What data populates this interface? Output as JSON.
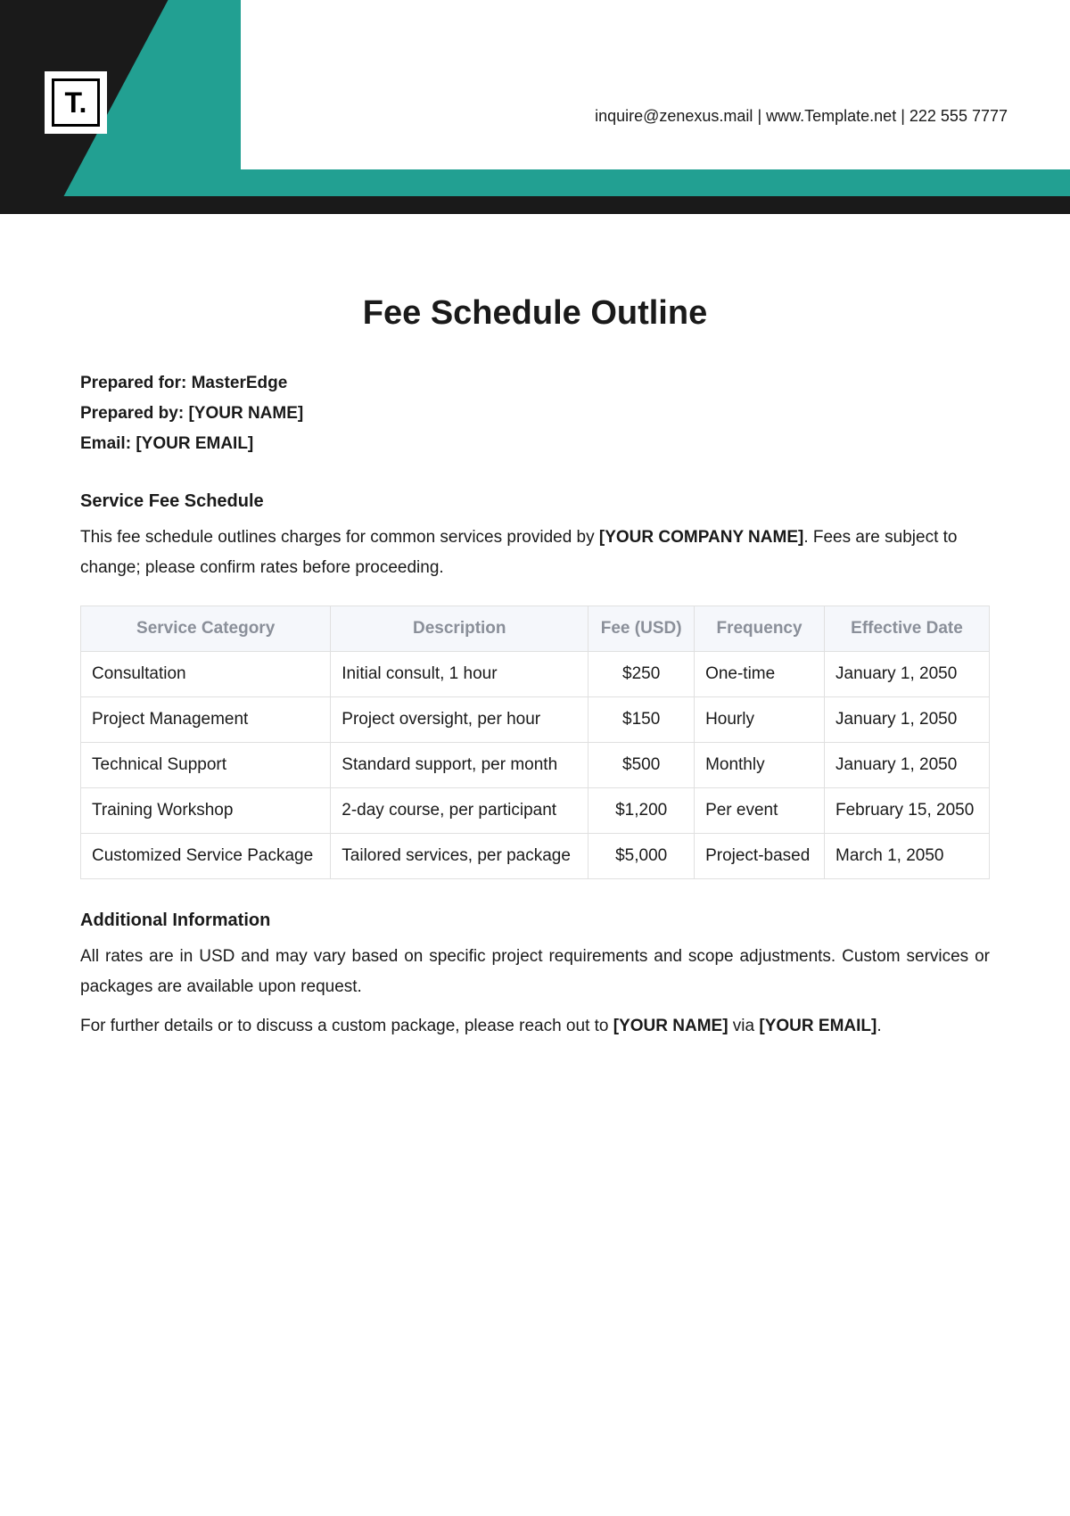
{
  "header": {
    "logo_text": "T.",
    "contact_email": "inquire@zenexus.mail",
    "contact_site": "www.Template.net",
    "contact_phone": "222 555 7777",
    "contact_sep": "  |  ",
    "colors": {
      "header_bg": "#1a1a1a",
      "accent": "#22a092",
      "page_bg": "#ffffff"
    }
  },
  "document": {
    "title": "Fee Schedule Outline",
    "prepared_for_label": "Prepared for: ",
    "prepared_for_value": "MasterEdge",
    "prepared_by_label": "Prepared by: ",
    "prepared_by_value": "[YOUR NAME]",
    "email_label": "Email: ",
    "email_value": "[YOUR EMAIL]"
  },
  "schedule": {
    "heading": "Service Fee Schedule",
    "intro_prefix": "This fee schedule outlines charges for common services provided by ",
    "intro_company": "[YOUR COMPANY NAME]",
    "intro_suffix": ". Fees are subject to change; please confirm rates before proceeding.",
    "columns": [
      "Service Category",
      "Description",
      "Fee (USD)",
      "Frequency",
      "Effective Date"
    ],
    "rows": [
      [
        "Consultation",
        "Initial consult, 1 hour",
        "$250",
        "One-time",
        "January 1, 2050"
      ],
      [
        "Project Management",
        "Project oversight, per hour",
        "$150",
        "Hourly",
        "January 1, 2050"
      ],
      [
        "Technical Support",
        "Standard support, per month",
        "$500",
        "Monthly",
        "January 1, 2050"
      ],
      [
        "Training Workshop",
        "2-day course, per participant",
        "$1,200",
        "Per event",
        "February 15, 2050"
      ],
      [
        "Customized Service Package",
        "Tailored services, per package",
        "$5,000",
        "Project-based",
        "March 1, 2050"
      ]
    ]
  },
  "additional": {
    "heading": "Additional Information",
    "para1": "All rates are in USD and may vary based on specific project requirements and scope adjustments. Custom services or packages are available upon request.",
    "para2_prefix": "For further details or to discuss a custom package, please reach out to ",
    "para2_name": "[YOUR NAME]",
    "para2_mid": " via ",
    "para2_email": "[YOUR EMAIL]",
    "para2_suffix": "."
  }
}
